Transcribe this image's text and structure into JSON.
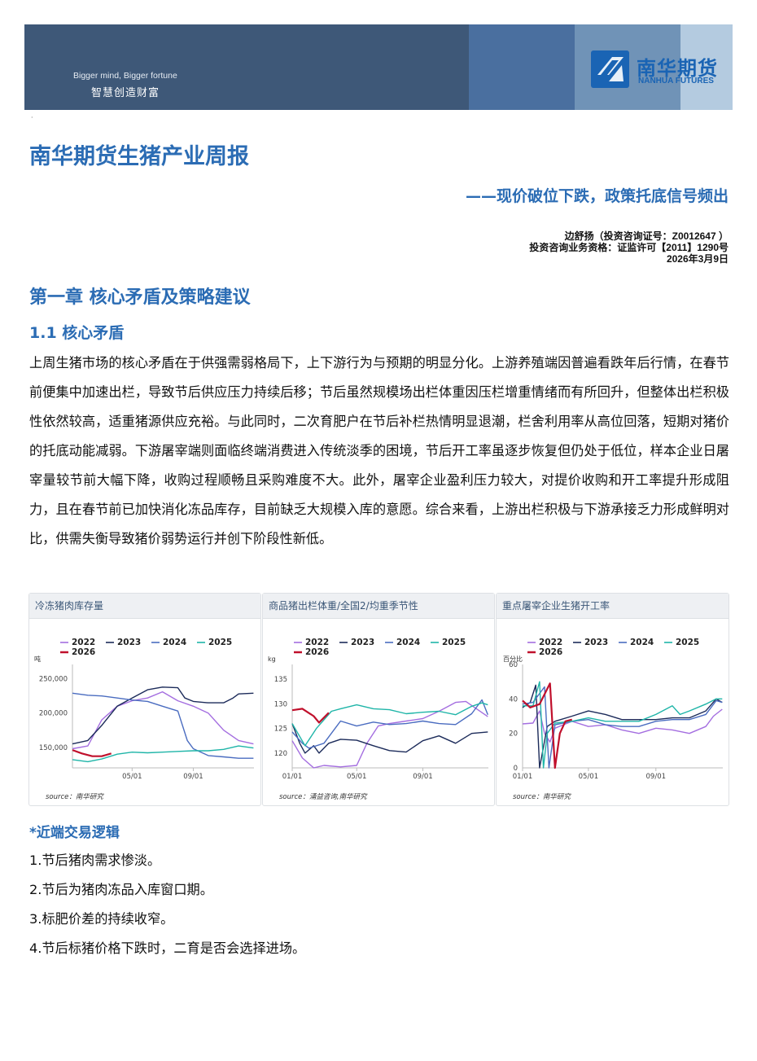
{
  "banner": {
    "slogan_en": "Bigger mind, Bigger fortune",
    "slogan_cn": "智慧创造财富",
    "logo_cn": "南华期货",
    "logo_en": "NANHUA FUTURES",
    "colors": [
      "#3e5878",
      "#4a6f9f",
      "#7093b7",
      "#b4cbe0"
    ]
  },
  "title": "南华期货生猪产业周报",
  "subtitle": "——现价破位下跌，政策托底信号频出",
  "author": {
    "line1": "边舒扬（投资咨询证号：Z0012647 ）",
    "line2": "投资咨询业务资格：证监许可【2011】1290号",
    "date": "2026年3月9日"
  },
  "chapter": "第一章 核心矛盾及策略建议",
  "section": "1.1 核心矛盾",
  "paragraph": "上周生猪市场的核心矛盾在于供强需弱格局下，上下游行为与预期的明显分化。上游养殖端因普遍看跌年后行情，在春节前便集中加速出栏，导致节后供应压力持续后移；节后虽然规模场出栏体重因压栏增重情绪而有所回升，但整体出栏积极性依然较高，适重猪源供应充裕。与此同时，二次育肥户在节后补栏热情明显退潮，栏舍利用率从高位回落，短期对猪价的托底动能减弱。下游屠宰端则面临终端消费进入传统淡季的困境，节后开工率虽逐步恢复但仍处于低位，样本企业日屠宰量较节前大幅下降，收购过程顺畅且采购难度不大。此外，屠宰企业盈利压力较大，对提价收购和开工率提升形成阻力，且在春节前已加快消化冻品库存，目前缺乏大规模入库的意愿。综合来看，上游出栏积极与下游承接乏力形成鲜明对比，供需失衡导致猪价弱势运行并创下阶段性新低。",
  "series_colors": {
    "2022": "#a46ee0",
    "2023": "#1c2b5a",
    "2024": "#4a6cc0",
    "2025": "#1fb5a8",
    "2026": "#c0102c"
  },
  "chart_data": [
    {
      "type": "line",
      "title": "冷冻猪肉库存量",
      "ylabel": "吨",
      "yticks": [
        150000,
        200000,
        250000
      ],
      "ytick_labels": [
        "150,000",
        "200,000",
        "250,000"
      ],
      "xtick_labels": [
        "05/01",
        "09/01"
      ],
      "ylim": [
        120000,
        271000
      ],
      "source": "source：南华研究",
      "series": [
        {
          "name": "2022",
          "x": [
            "01/01",
            "02/01",
            "03/01",
            "04/01",
            "05/01",
            "06/01",
            "07/01",
            "08/01",
            "09/01",
            "10/01",
            "11/01",
            "12/01",
            "12/31"
          ],
          "values": [
            148000,
            152000,
            190000,
            210000,
            218000,
            222000,
            231000,
            218000,
            210000,
            200000,
            175000,
            160000,
            155000
          ]
        },
        {
          "name": "2023",
          "x": [
            "01/01",
            "02/01",
            "03/01",
            "04/01",
            "05/01",
            "06/01",
            "07/01",
            "08/01",
            "08/15",
            "09/01",
            "10/01",
            "11/01",
            "11/20",
            "12/01",
            "12/31"
          ],
          "values": [
            155000,
            160000,
            182000,
            210000,
            222000,
            234000,
            238000,
            237000,
            222000,
            217000,
            215000,
            215000,
            222000,
            228000,
            229000
          ]
        },
        {
          "name": "2024",
          "x": [
            "01/01",
            "02/01",
            "03/01",
            "04/01",
            "05/01",
            "06/01",
            "07/01",
            "08/01",
            "08/20",
            "09/01",
            "10/01",
            "11/01",
            "12/01",
            "12/31"
          ],
          "values": [
            229000,
            226000,
            225000,
            222000,
            219000,
            217000,
            210000,
            203000,
            160000,
            148000,
            138000,
            136000,
            134000,
            134000
          ]
        },
        {
          "name": "2025",
          "x": [
            "01/01",
            "02/01",
            "03/01",
            "04/01",
            "05/01",
            "06/01",
            "07/01",
            "08/01",
            "09/01",
            "10/01",
            "11/01",
            "12/01",
            "12/31"
          ],
          "values": [
            132000,
            129000,
            133000,
            140000,
            143000,
            142000,
            143000,
            144000,
            145000,
            145000,
            147000,
            152000,
            149000
          ]
        },
        {
          "name": "2026",
          "x": [
            "01/01",
            "01/20",
            "02/10",
            "03/01",
            "03/20"
          ],
          "values": [
            146000,
            141000,
            137000,
            137000,
            141000
          ]
        }
      ]
    },
    {
      "type": "line",
      "title": "商品猪出栏体重/全国2/均重季节性",
      "ylabel": "kg",
      "yticks": [
        120,
        125,
        130,
        135
      ],
      "ytick_labels": [
        "120",
        "125",
        "130",
        "135"
      ],
      "xtick_labels": [
        "01/01",
        "05/01",
        "09/01"
      ],
      "ylim": [
        117,
        138
      ],
      "source": "source：涌益咨询,南华研究",
      "series": [
        {
          "name": "2022",
          "x": [
            "01/01",
            "01/20",
            "02/10",
            "03/01",
            "04/01",
            "05/01",
            "05/20",
            "06/10",
            "07/01",
            "08/01",
            "09/01",
            "10/01",
            "11/01",
            "11/20",
            "12/31"
          ],
          "values": [
            122.5,
            119,
            117,
            117.5,
            117.2,
            117.5,
            122,
            125.5,
            126,
            126.5,
            127,
            128.5,
            130.3,
            130.5,
            127.4
          ]
        },
        {
          "name": "2023",
          "x": [
            "01/01",
            "01/15",
            "01/25",
            "02/10",
            "02/20",
            "03/10",
            "04/01",
            "05/01",
            "06/01",
            "07/01",
            "08/01",
            "09/01",
            "10/01",
            "11/01",
            "12/01",
            "12/31"
          ],
          "values": [
            126,
            122,
            120,
            121.5,
            120,
            122,
            122.8,
            122.6,
            121.5,
            120.5,
            120.2,
            122.5,
            123.5,
            122,
            124,
            124.3
          ]
        },
        {
          "name": "2024",
          "x": [
            "01/01",
            "01/20",
            "02/01",
            "03/01",
            "04/01",
            "05/01",
            "06/01",
            "07/01",
            "08/01",
            "09/01",
            "10/01",
            "11/01",
            "12/01",
            "12/20",
            "12/31"
          ],
          "values": [
            124.3,
            122,
            121,
            122,
            126.5,
            125.5,
            126.3,
            125.8,
            126,
            126.5,
            126,
            125.8,
            128,
            130.8,
            127.8
          ]
        },
        {
          "name": "2025",
          "x": [
            "01/01",
            "01/25",
            "02/15",
            "03/15",
            "04/01",
            "05/01",
            "06/01",
            "07/01",
            "08/01",
            "09/01",
            "10/01",
            "11/01",
            "12/01",
            "12/20",
            "12/31"
          ],
          "values": [
            126,
            121.5,
            125,
            128.5,
            129,
            129.8,
            129,
            128.8,
            128,
            128.3,
            128.5,
            127.8,
            129.5,
            130.2,
            129.8
          ]
        },
        {
          "name": "2026",
          "x": [
            "01/01",
            "01/20",
            "02/10",
            "02/20",
            "03/10"
          ],
          "values": [
            128.7,
            129,
            127.5,
            126.2,
            128.2
          ]
        }
      ]
    },
    {
      "type": "line",
      "title": "重点屠宰企业生猪开工率",
      "ylabel": "百分比",
      "yticks": [
        0,
        20,
        40,
        60
      ],
      "ytick_labels": [
        "0",
        "20",
        "40",
        "60"
      ],
      "xtick_labels": [
        "01/01",
        "05/01",
        "09/01"
      ],
      "ylim": [
        0,
        60
      ],
      "source": "source：南华研究",
      "series": [
        {
          "name": "2022",
          "x": [
            "01/01",
            "01/20",
            "02/01",
            "02/10",
            "02/20",
            "03/01",
            "04/01",
            "05/01",
            "06/01",
            "07/01",
            "08/01",
            "09/01",
            "10/01",
            "11/01",
            "12/01",
            "12/15",
            "12/31"
          ],
          "values": [
            25.5,
            26,
            33,
            20,
            15,
            23,
            27,
            24,
            25,
            22,
            20,
            23,
            22,
            20,
            24,
            30,
            34
          ]
        },
        {
          "name": "2023",
          "x": [
            "01/01",
            "01/15",
            "01/25",
            "02/01",
            "02/15",
            "03/01",
            "04/01",
            "05/01",
            "06/01",
            "07/01",
            "08/01",
            "09/01",
            "10/01",
            "11/01",
            "12/01",
            "12/20",
            "12/31"
          ],
          "values": [
            35,
            38,
            48,
            0,
            24,
            27,
            30,
            33,
            31,
            28,
            28,
            28,
            29,
            29,
            33,
            40,
            38
          ]
        },
        {
          "name": "2024",
          "x": [
            "01/01",
            "01/20",
            "02/10",
            "02/18",
            "03/01",
            "04/01",
            "05/01",
            "06/01",
            "07/01",
            "08/01",
            "09/01",
            "10/01",
            "11/01",
            "12/01",
            "12/20",
            "12/31"
          ],
          "values": [
            37,
            38,
            47,
            0,
            25,
            27,
            28,
            25,
            24,
            24,
            27,
            28,
            28,
            31,
            39,
            38
          ]
        },
        {
          "name": "2025",
          "x": [
            "01/01",
            "01/20",
            "02/01",
            "02/08",
            "02/15",
            "03/01",
            "04/01",
            "05/01",
            "06/01",
            "07/01",
            "08/01",
            "09/01",
            "10/01",
            "10/15",
            "11/01",
            "12/01",
            "12/20",
            "12/31"
          ],
          "values": [
            36,
            36,
            50,
            0,
            20,
            26,
            27,
            29,
            27,
            27,
            27,
            31,
            36,
            31,
            33,
            37,
            40,
            40
          ]
        },
        {
          "name": "2026",
          "x": [
            "01/01",
            "01/15",
            "02/01",
            "02/20",
            "03/01",
            "03/10",
            "03/20",
            "04/01"
          ],
          "values": [
            39,
            35,
            37,
            49,
            0,
            20,
            27,
            28
          ]
        }
      ]
    }
  ],
  "logic": {
    "title": "*近端交易逻辑",
    "items": [
      "1.节后猪肉需求惨淡。",
      "2.节后为猪肉冻品入库窗口期。",
      "3.标肥价差的持续收窄。",
      "4.节后标猪价格下跌时，二育是否会选择进场。"
    ]
  }
}
